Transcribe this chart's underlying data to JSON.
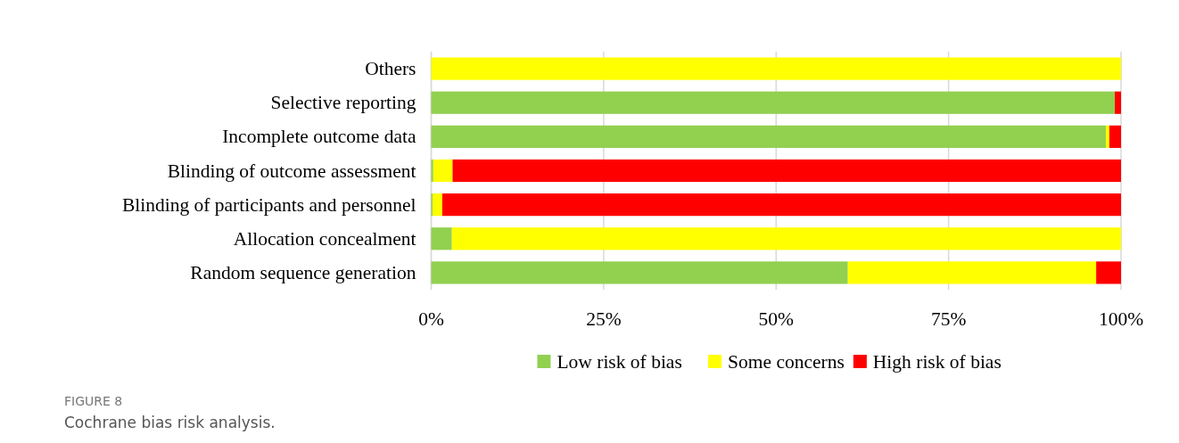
{
  "chart_data": {
    "type": "bar",
    "orientation": "horizontal",
    "stacked": true,
    "categories": [
      "Others",
      "Selective reporting",
      "Incomplete outcome data",
      "Blinding of outcome assessment",
      "Blinding of participants and personnel",
      "Allocation concealment",
      "Random sequence generation"
    ],
    "series": [
      {
        "name": "Low risk of bias",
        "color": "#92d050",
        "values": [
          0,
          99.1,
          97.8,
          0.3,
          0.2,
          3.0,
          60.4
        ]
      },
      {
        "name": "Some concerns",
        "color": "#ffff00",
        "values": [
          100,
          0,
          0.5,
          2.8,
          1.4,
          97.0,
          36.0
        ]
      },
      {
        "name": "High risk of bias",
        "color": "#ff0000",
        "values": [
          0,
          0.9,
          1.7,
          96.9,
          98.4,
          0,
          3.6
        ]
      }
    ],
    "xlim": [
      0,
      100
    ],
    "xticks": [
      {
        "value": 0,
        "label": "0%"
      },
      {
        "value": 25,
        "label": "25%"
      },
      {
        "value": 50,
        "label": "50%"
      },
      {
        "value": 75,
        "label": "75%"
      },
      {
        "value": 100,
        "label": "100%"
      }
    ],
    "grid": "x",
    "legend": "bottom",
    "annotations": [
      "FIGURE 8",
      "Cochrane bias risk analysis."
    ]
  }
}
